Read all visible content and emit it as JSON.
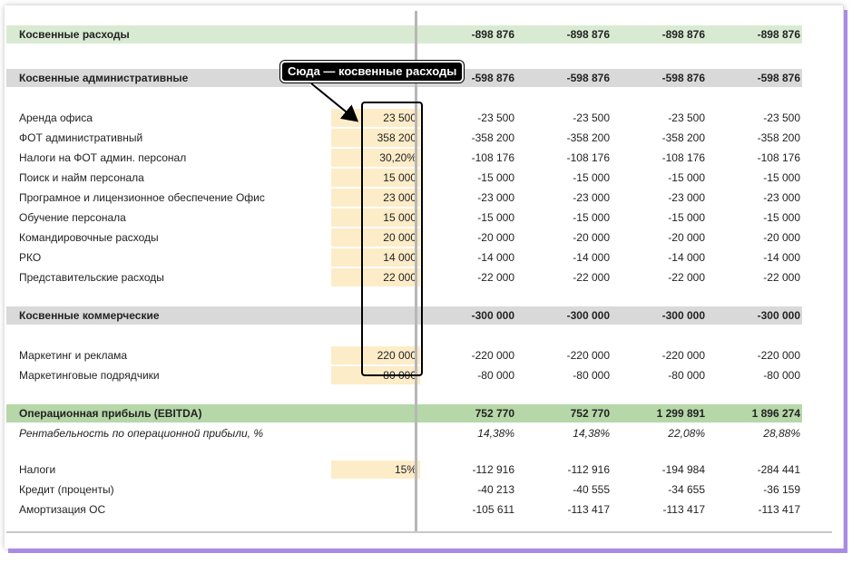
{
  "callout": "Сюда — косвенные расходы",
  "rows": [
    {
      "label": "Косвенные расходы",
      "input": "",
      "v": [
        "-898 876",
        "-898 876",
        "-898 876",
        "-898 876"
      ],
      "style": "green-bold"
    },
    {
      "label": "Косвенные  административные",
      "input": "",
      "v": [
        "-598 876",
        "-598 876",
        "-598 876",
        "-598 876"
      ],
      "style": "gray-bold"
    },
    {
      "label": "Аренда офиса",
      "input": "23 500",
      "v": [
        "-23 500",
        "-23 500",
        "-23 500",
        "-23 500"
      ],
      "style": "item"
    },
    {
      "label": "ФОТ административный",
      "input": "358 200",
      "v": [
        "-358 200",
        "-358 200",
        "-358 200",
        "-358 200"
      ],
      "style": "item"
    },
    {
      "label": "Налоги на ФОТ админ. персонал",
      "input": "30,20%",
      "v": [
        "-108 176",
        "-108 176",
        "-108 176",
        "-108 176"
      ],
      "style": "item"
    },
    {
      "label": "Поиск и найм персонала",
      "input": "15 000",
      "v": [
        "-15 000",
        "-15 000",
        "-15 000",
        "-15 000"
      ],
      "style": "item"
    },
    {
      "label": "Програмное и лицензионное обеспечение Офис",
      "input": "23 000",
      "v": [
        "-23 000",
        "-23 000",
        "-23 000",
        "-23 000"
      ],
      "style": "item"
    },
    {
      "label": "Обучение персонала",
      "input": "15 000",
      "v": [
        "-15 000",
        "-15 000",
        "-15 000",
        "-15 000"
      ],
      "style": "item"
    },
    {
      "label": "Командировочные расходы",
      "input": "20 000",
      "v": [
        "-20 000",
        "-20 000",
        "-20 000",
        "-20 000"
      ],
      "style": "item"
    },
    {
      "label": "РКО",
      "input": "14 000",
      "v": [
        "-14 000",
        "-14 000",
        "-14 000",
        "-14 000"
      ],
      "style": "item"
    },
    {
      "label": "Представительские расходы",
      "input": "22 000",
      "v": [
        "-22 000",
        "-22 000",
        "-22 000",
        "-22 000"
      ],
      "style": "item"
    },
    {
      "label": "Косвенные  коммерческие",
      "input": "",
      "v": [
        "-300 000",
        "-300 000",
        "-300 000",
        "-300 000"
      ],
      "style": "gray-bold"
    },
    {
      "label": "Маркетинг и реклама",
      "input": "220 000",
      "v": [
        "-220 000",
        "-220 000",
        "-220 000",
        "-220 000"
      ],
      "style": "item"
    },
    {
      "label": "Маркетинговые подрядчики",
      "input": "80 000",
      "v": [
        "-80 000",
        "-80 000",
        "-80 000",
        "-80 000"
      ],
      "style": "item"
    },
    {
      "label": "Операционная прибыль (EBITDA)",
      "input": "",
      "v": [
        "752 770",
        "752 770",
        "1 299 891",
        "1 896 274"
      ],
      "style": "ebitda-bold"
    },
    {
      "label": "Рентабельность по операционной прибыли, %",
      "input": "",
      "v": [
        "14,38%",
        "14,38%",
        "22,08%",
        "28,88%"
      ],
      "style": "italic"
    },
    {
      "label": "Налоги",
      "input": "15%",
      "v": [
        "-112 916",
        "-112 916",
        "-194 984",
        "-284 441"
      ],
      "style": "item"
    },
    {
      "label": "Кредит (проценты)",
      "input": "",
      "v": [
        "-40 213",
        "-40 555",
        "-34 655",
        "-36 159"
      ],
      "style": "plain"
    },
    {
      "label": "Амортизация ОС",
      "input": "",
      "v": [
        "-105 611",
        "-113 417",
        "-113 417",
        "-113 417"
      ],
      "style": "plain"
    }
  ]
}
